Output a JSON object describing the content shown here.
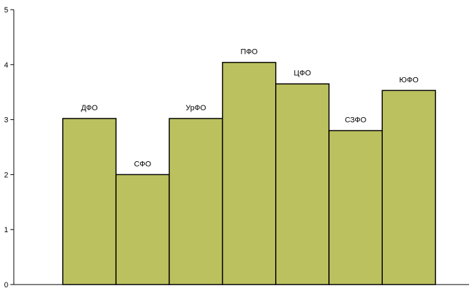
{
  "chart_data": {
    "type": "bar",
    "categories": [
      "ДФО",
      "СФО",
      "УрФО",
      "ПФО",
      "ЦФО",
      "СЗФО",
      "ЮФО"
    ],
    "values": [
      3.02,
      2.0,
      3.02,
      4.04,
      3.65,
      2.8,
      3.53
    ],
    "ylim": [
      0,
      5
    ],
    "yticks": [
      "0",
      "1",
      "2",
      "3",
      "4",
      "5"
    ],
    "bar_color": "#bcc15f",
    "bar_edge_color": "#000000",
    "grid": false,
    "title": "",
    "xlabel": "",
    "ylabel": ""
  }
}
